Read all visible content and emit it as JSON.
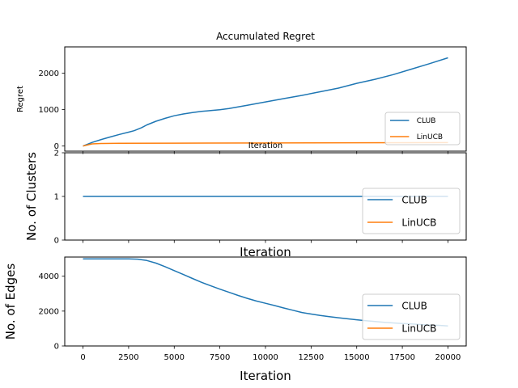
{
  "chart_data": [
    {
      "type": "line",
      "title": "Accumulated Regret",
      "xlabel": "Iteration",
      "ylabel": "Regret",
      "xlim": [
        -1000,
        21000
      ],
      "ylim": [
        -140,
        2720
      ],
      "xticks": [
        0,
        2500,
        5000,
        7500,
        10000,
        12500,
        15000,
        17500,
        20000
      ],
      "xtick_labels_shown": false,
      "yticks": [
        0,
        1000,
        2000
      ],
      "ytick_labels": [
        "0",
        "1000",
        "2000"
      ],
      "legend_loc": "lower-right",
      "series": [
        {
          "name": "CLUB",
          "color": "#1f77b4",
          "x": [
            0,
            500,
            1000,
            1500,
            2000,
            2500,
            2800,
            3200,
            3500,
            4000,
            4500,
            5000,
            5500,
            6000,
            6500,
            7000,
            7500,
            8000,
            9000,
            10000,
            11000,
            12000,
            13000,
            14000,
            15000,
            16000,
            17000,
            18000,
            19000,
            20000
          ],
          "y": [
            0,
            100,
            180,
            250,
            320,
            380,
            420,
            500,
            580,
            680,
            760,
            830,
            880,
            920,
            950,
            975,
            995,
            1030,
            1120,
            1210,
            1300,
            1390,
            1490,
            1590,
            1720,
            1830,
            1960,
            2110,
            2260,
            2420
          ]
        },
        {
          "name": "LinUCB",
          "color": "#ff7f0e",
          "x": [
            0,
            500,
            1000,
            2000,
            5000,
            10000,
            15000,
            20000
          ],
          "y": [
            0,
            60,
            70,
            75,
            80,
            85,
            90,
            95
          ]
        }
      ]
    },
    {
      "type": "line",
      "title": "",
      "xlabel": "Iteration",
      "ylabel": "No. of Clusters",
      "xlim": [
        -1000,
        21000
      ],
      "ylim": [
        0,
        2
      ],
      "xticks": [
        0,
        2500,
        5000,
        7500,
        10000,
        12500,
        15000,
        17500,
        20000
      ],
      "xtick_labels_shown": false,
      "yticks": [
        0,
        1,
        2
      ],
      "ytick_labels": [
        "0",
        "1",
        "2"
      ],
      "legend_loc": "lower-right",
      "series": [
        {
          "name": "CLUB",
          "color": "#1f77b4",
          "x": [
            0,
            20000
          ],
          "y": [
            1,
            1
          ]
        },
        {
          "name": "LinUCB",
          "color": "#ff7f0e",
          "x": [],
          "y": []
        }
      ]
    },
    {
      "type": "line",
      "title": "",
      "xlabel": "Iteration",
      "ylabel": "No. of Edges",
      "xlim": [
        -1000,
        21000
      ],
      "ylim": [
        0,
        5100
      ],
      "xticks": [
        0,
        2500,
        5000,
        7500,
        10000,
        12500,
        15000,
        17500,
        20000
      ],
      "xtick_labels_shown": true,
      "xtick_labels": [
        "0",
        "2500",
        "5000",
        "7500",
        "10000",
        "12500",
        "15000",
        "17500",
        "20000"
      ],
      "yticks": [
        0,
        2000,
        4000
      ],
      "ytick_labels": [
        "0",
        "2000",
        "4000"
      ],
      "legend_loc": "lower-right",
      "series": [
        {
          "name": "CLUB",
          "color": "#1f77b4",
          "x": [
            0,
            1000,
            2000,
            2500,
            3000,
            3500,
            4000,
            4500,
            5000,
            5500,
            6000,
            6500,
            7000,
            7500,
            8000,
            8500,
            9000,
            9500,
            10000,
            10500,
            11000,
            11500,
            12000,
            12500,
            13000,
            13500,
            14000,
            14500,
            15000,
            15500,
            16000,
            16500,
            17000,
            17500,
            18000,
            18500,
            19000,
            19500,
            20000
          ],
          "y": [
            5000,
            5000,
            5000,
            5000,
            4980,
            4900,
            4750,
            4550,
            4320,
            4100,
            3870,
            3650,
            3450,
            3260,
            3080,
            2900,
            2730,
            2580,
            2450,
            2320,
            2180,
            2050,
            1920,
            1830,
            1750,
            1680,
            1620,
            1560,
            1500,
            1450,
            1400,
            1360,
            1320,
            1290,
            1260,
            1230,
            1200,
            1180,
            1150
          ]
        },
        {
          "name": "LinUCB",
          "color": "#ff7f0e",
          "x": [],
          "y": []
        }
      ]
    }
  ]
}
